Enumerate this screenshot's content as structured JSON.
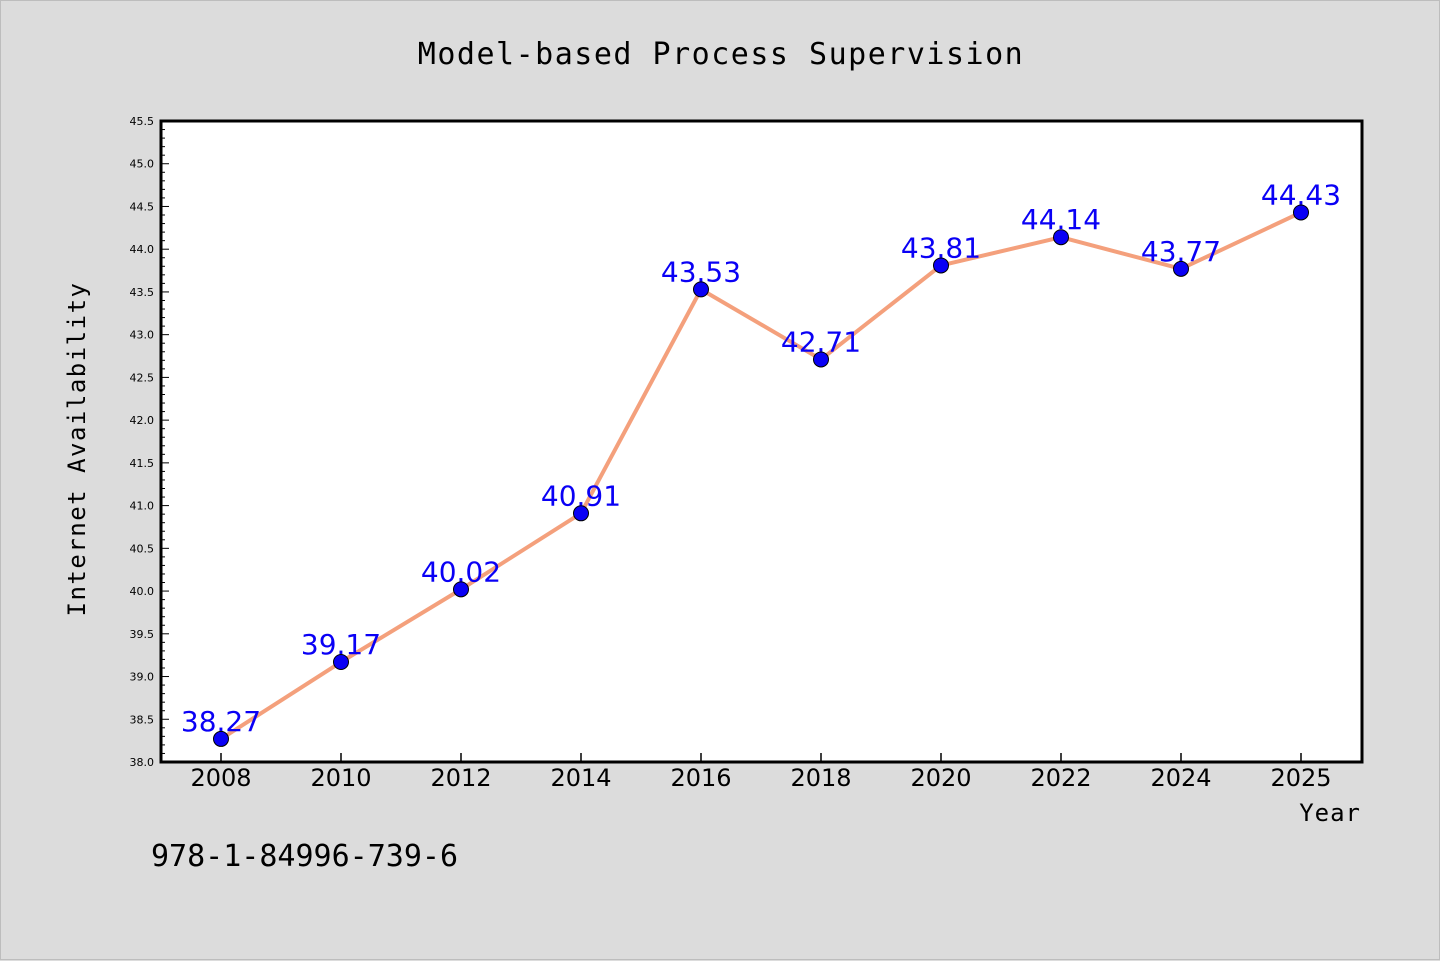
{
  "chart_data": {
    "type": "line",
    "title": "Model-based Process Supervision",
    "xlabel": "Year",
    "ylabel": "Internet Availability",
    "annotation": "978-1-84996-739-6",
    "categories": [
      "2008",
      "2010",
      "2012",
      "2014",
      "2016",
      "2018",
      "2020",
      "2022",
      "2024",
      "2025"
    ],
    "series": [
      {
        "values": [
          38.27,
          39.17,
          40.02,
          40.91,
          43.53,
          42.71,
          43.81,
          44.14,
          43.77,
          44.43
        ],
        "data_labels": [
          "38.27",
          "39.17",
          "40.02",
          "40.91",
          "43.53",
          "42.71",
          "43.81",
          "44.14",
          "43.77",
          "44.43"
        ],
        "line_color": "#f4a07c",
        "marker_color": "#0a00f5",
        "label_color": "#0a00f5"
      }
    ],
    "ylim": [
      38.0,
      45.5
    ],
    "yticks": [
      "38.0",
      "38.5",
      "39.0",
      "39.5",
      "40.0",
      "40.5",
      "41.0",
      "41.5",
      "42.0",
      "42.5",
      "43.0",
      "43.5",
      "44.0",
      "44.5",
      "45.0",
      "45.5"
    ],
    "grid": false,
    "legend": "none",
    "background_color": "#dcdcdc",
    "plot_background_color": "#ffffff"
  }
}
